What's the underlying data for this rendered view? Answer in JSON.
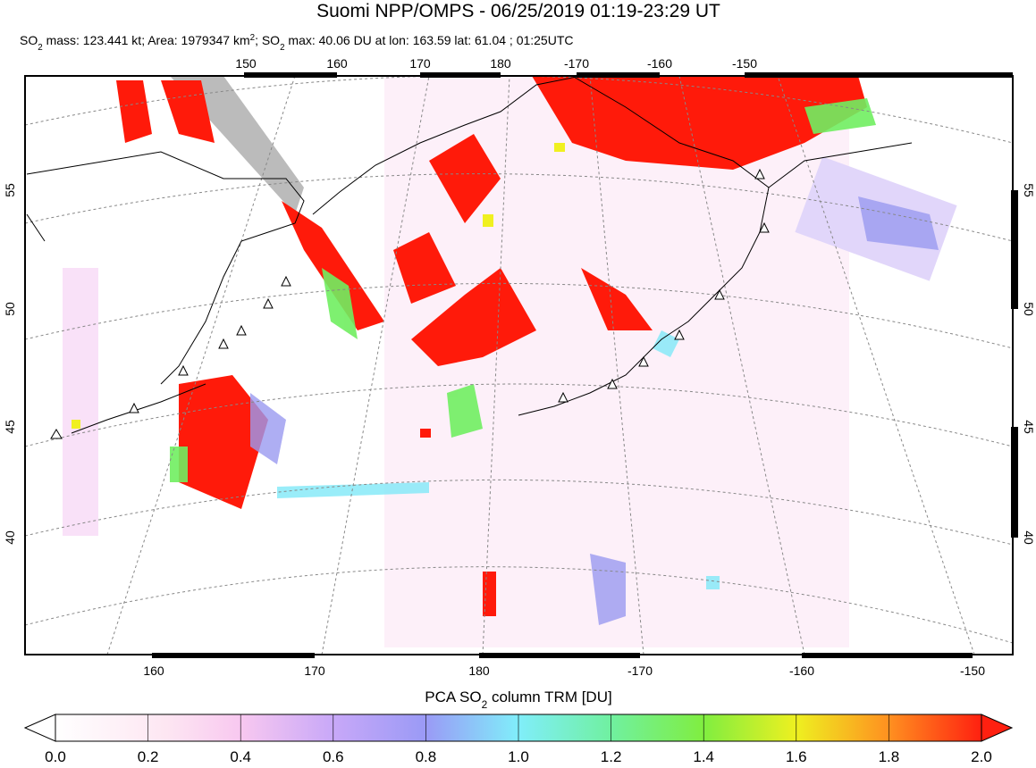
{
  "header": {
    "title": "Suomi NPP/OMPS - 06/25/2019 01:19-23:29 UT",
    "subtitle": [
      "SO",
      "2",
      " mass: 123.441 kt; Area: 1979347 km",
      "2",
      "; SO",
      "2",
      " max: 40.06 DU at lon: 163.59 lat: 61.04 ; 01:25UTC"
    ]
  },
  "map": {
    "top_labels": [
      150,
      160,
      170,
      180,
      -170,
      -160,
      -150
    ],
    "bottom_labels": [
      160,
      170,
      180,
      -170,
      -160,
      -150
    ],
    "left_labels": [
      55,
      50,
      45,
      40
    ],
    "right_labels": [
      55,
      50,
      45,
      40
    ]
  },
  "colorbar": {
    "title": [
      "PCA SO",
      "2",
      " column TRM [DU]"
    ],
    "labels": [
      "0.0",
      "0.2",
      "0.4",
      "0.6",
      "0.8",
      "1.0",
      "1.2",
      "1.4",
      "1.6",
      "1.8",
      "2.0"
    ]
  }
}
